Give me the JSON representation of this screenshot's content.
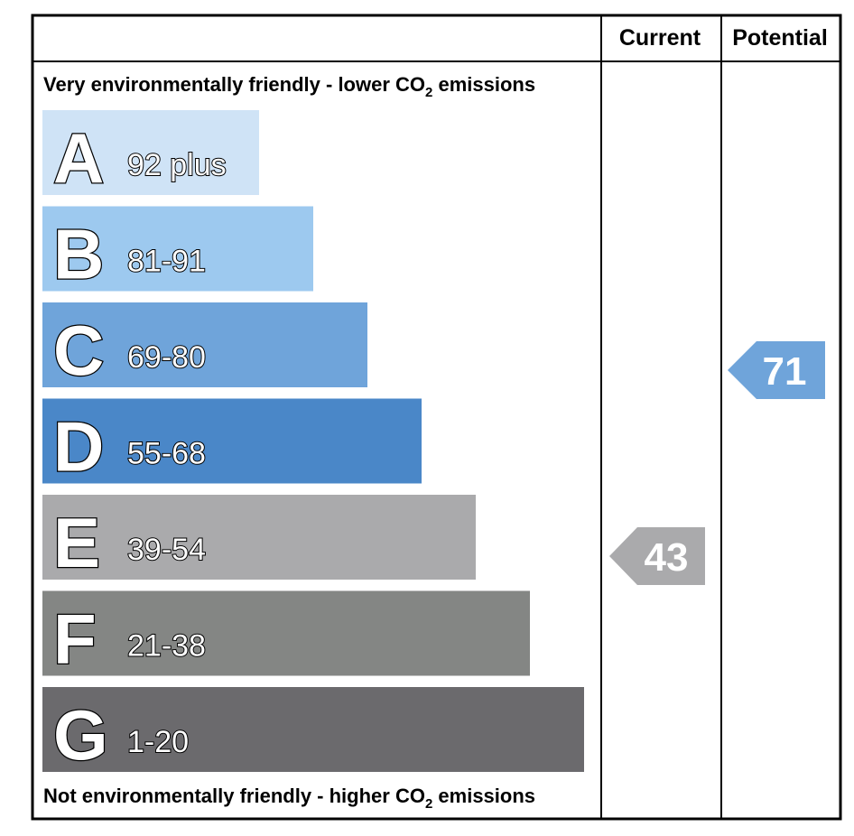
{
  "header": {
    "current_label": "Current",
    "potential_label": "Potential"
  },
  "top_caption": {
    "prefix": "Very environmentally friendly - lower CO",
    "sub": "2",
    "suffix": " emissions"
  },
  "bottom_caption": {
    "prefix": "Not environmentally friendly - higher CO",
    "sub": "2",
    "suffix": " emissions"
  },
  "chart_data": {
    "type": "bar",
    "categories": [
      "A",
      "B",
      "C",
      "D",
      "E",
      "F",
      "G"
    ],
    "ranges": [
      "92 plus",
      "81-91",
      "69-80",
      "55-68",
      "39-54",
      "21-38",
      "1-20"
    ],
    "colors": [
      "#cfe3f6",
      "#9dc9ef",
      "#6fa4da",
      "#4a87c8",
      "#aaaaac",
      "#848684",
      "#6b6a6d"
    ],
    "current": {
      "value": "43",
      "color": "#aaaaac"
    },
    "potential": {
      "value": "71",
      "color": "#6fa4da"
    }
  }
}
